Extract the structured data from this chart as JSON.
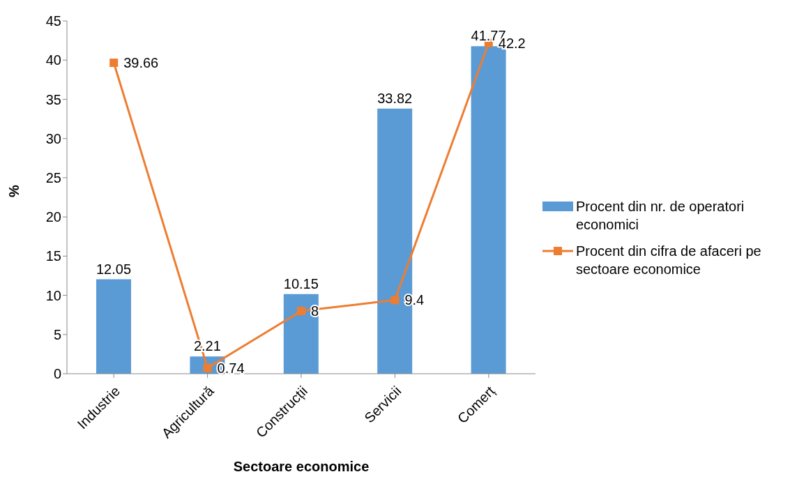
{
  "chart_data": {
    "type": "bar",
    "xlabel": "Sectoare economice",
    "ylabel": "%",
    "categories": [
      "Industrie",
      "Agricultură",
      "Construcții",
      "Servicii",
      "Comerț"
    ],
    "series": [
      {
        "name": "Procent din nr. de operatori economici",
        "color": "#5b9bd5",
        "values": [
          12.05,
          2.21,
          10.15,
          33.82,
          41.77
        ]
      },
      {
        "name": "Procent din cifra de afaceri pe sectoare economice",
        "type": "line",
        "color": "#ed7d31",
        "values": [
          39.66,
          0.74,
          8,
          9.4,
          42.2
        ],
        "marker": "square",
        "line_style": "solid"
      }
    ],
    "ylim": [
      0,
      45
    ],
    "yticks": [
      0,
      5,
      10,
      15,
      20,
      25,
      30,
      35,
      40,
      45
    ],
    "legend": "right",
    "data_labels": true
  }
}
